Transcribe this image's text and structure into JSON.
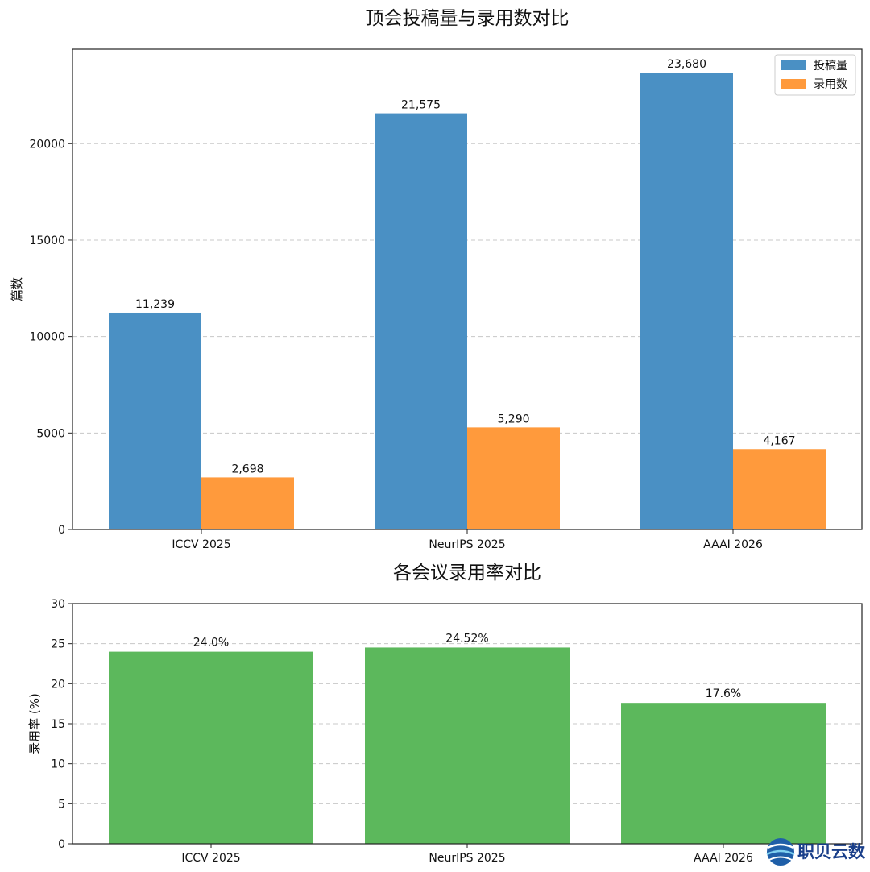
{
  "chart_data": [
    {
      "type": "bar",
      "title": "顶会投稿量与录用数对比",
      "xlabel": "",
      "ylabel": "篇数",
      "categories": [
        "ICCV 2025",
        "NeurIPS 2025",
        "AAAI 2026"
      ],
      "series": [
        {
          "name": "投稿量",
          "values": [
            11239,
            21575,
            23680
          ],
          "labels": [
            "11,239",
            "21,575",
            "23,680"
          ],
          "color": "#4a90c4"
        },
        {
          "name": "录用数",
          "values": [
            2698,
            5290,
            4167
          ],
          "labels": [
            "2,698",
            "5,290",
            "4,167"
          ],
          "color": "#ff9a3c"
        }
      ],
      "ylim": [
        0,
        24900
      ],
      "yticks": [
        0,
        5000,
        10000,
        15000,
        20000
      ],
      "grid": true,
      "legend": "top-right"
    },
    {
      "type": "bar",
      "title": "各会议录用率对比",
      "xlabel": "",
      "ylabel": "录用率 (%)",
      "categories": [
        "ICCV 2025",
        "NeurIPS 2025",
        "AAAI 2026"
      ],
      "series": [
        {
          "values": [
            24.0,
            24.52,
            17.6
          ],
          "labels": [
            "24.0%",
            "24.52%",
            "17.6%"
          ],
          "color": "#5cb85c"
        }
      ],
      "ylim": [
        0,
        30
      ],
      "yticks": [
        0,
        5,
        10,
        15,
        20,
        25,
        30
      ],
      "grid": true
    }
  ],
  "watermark": {
    "text": "职贝云数",
    "icon": "globe-logo-icon"
  }
}
